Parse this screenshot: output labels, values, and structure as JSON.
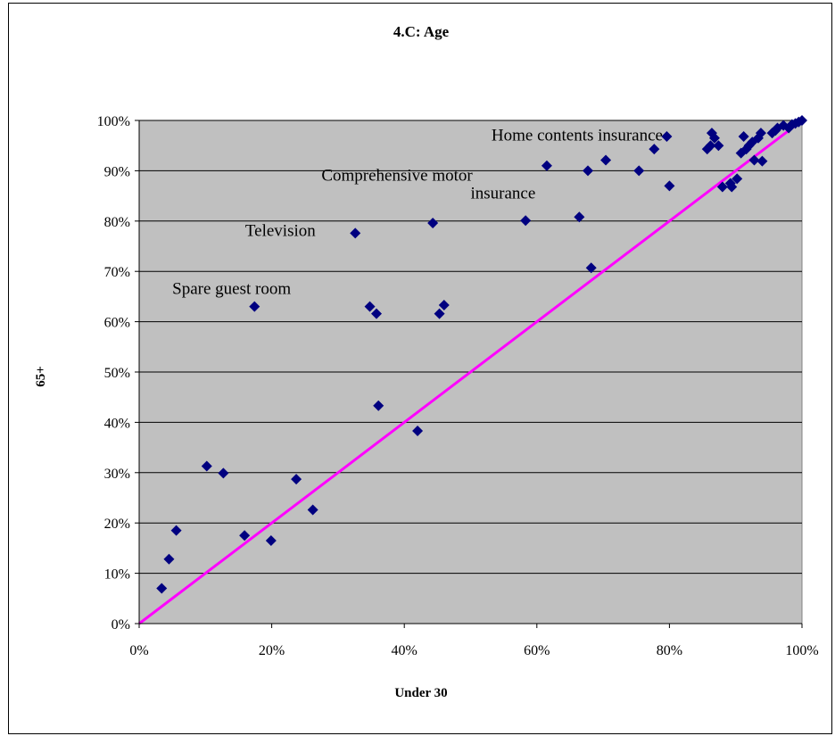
{
  "chart_data": {
    "type": "scatter",
    "title": "4.C: Age",
    "xlabel": "Under 30",
    "ylabel": "65+",
    "xlim": [
      0,
      1
    ],
    "ylim": [
      0,
      1
    ],
    "x_ticks": [
      "0%",
      "20%",
      "40%",
      "60%",
      "80%",
      "100%"
    ],
    "y_ticks": [
      "0%",
      "10%",
      "20%",
      "30%",
      "40%",
      "50%",
      "60%",
      "70%",
      "80%",
      "90%",
      "100%"
    ],
    "grid": "horizontal",
    "plot_background": "#c0c0c0",
    "marker_color": "#000080",
    "reference_line": {
      "from": [
        0,
        0
      ],
      "to": [
        1,
        1
      ],
      "color": "#ff00ff"
    },
    "points": [
      [
        0.034,
        0.07
      ],
      [
        0.045,
        0.128
      ],
      [
        0.056,
        0.185
      ],
      [
        0.102,
        0.313
      ],
      [
        0.127,
        0.299
      ],
      [
        0.159,
        0.175
      ],
      [
        0.174,
        0.63
      ],
      [
        0.199,
        0.165
      ],
      [
        0.237,
        0.287
      ],
      [
        0.262,
        0.226
      ],
      [
        0.326,
        0.776
      ],
      [
        0.348,
        0.63
      ],
      [
        0.358,
        0.616
      ],
      [
        0.361,
        0.433
      ],
      [
        0.42,
        0.383
      ],
      [
        0.443,
        0.796
      ],
      [
        0.453,
        0.616
      ],
      [
        0.46,
        0.633
      ],
      [
        0.583,
        0.801
      ],
      [
        0.615,
        0.91
      ],
      [
        0.664,
        0.808
      ],
      [
        0.677,
        0.9
      ],
      [
        0.682,
        0.707
      ],
      [
        0.704,
        0.921
      ],
      [
        0.754,
        0.9
      ],
      [
        0.777,
        0.943
      ],
      [
        0.796,
        0.968
      ],
      [
        0.8,
        0.87
      ],
      [
        0.857,
        0.943
      ],
      [
        0.862,
        0.95
      ],
      [
        0.864,
        0.975
      ],
      [
        0.868,
        0.965
      ],
      [
        0.874,
        0.95
      ],
      [
        0.88,
        0.868
      ],
      [
        0.892,
        0.875
      ],
      [
        0.894,
        0.868
      ],
      [
        0.902,
        0.884
      ],
      [
        0.908,
        0.935
      ],
      [
        0.912,
        0.968
      ],
      [
        0.916,
        0.943
      ],
      [
        0.92,
        0.95
      ],
      [
        0.925,
        0.957
      ],
      [
        0.928,
        0.921
      ],
      [
        0.934,
        0.965
      ],
      [
        0.938,
        0.975
      ],
      [
        0.94,
        0.919
      ],
      [
        0.955,
        0.975
      ],
      [
        0.96,
        0.98
      ],
      [
        0.963,
        0.985
      ],
      [
        0.972,
        0.99
      ],
      [
        0.98,
        0.985
      ],
      [
        0.985,
        0.992
      ],
      [
        0.99,
        0.994
      ],
      [
        0.995,
        0.997
      ],
      [
        1.0,
        1.0
      ]
    ],
    "annotations": [
      {
        "text": "Home contents insurance",
        "x": 0.79,
        "y": 0.96,
        "anchor": "end"
      },
      {
        "text": "Comprehensive motor",
        "x": 0.275,
        "y": 0.88,
        "anchor": "start"
      },
      {
        "text": "insurance",
        "x": 0.5,
        "y": 0.845,
        "anchor": "start"
      },
      {
        "text": "Television",
        "x": 0.16,
        "y": 0.77,
        "anchor": "start"
      },
      {
        "text": "Spare guest room",
        "x": 0.05,
        "y": 0.655,
        "anchor": "start"
      }
    ]
  }
}
